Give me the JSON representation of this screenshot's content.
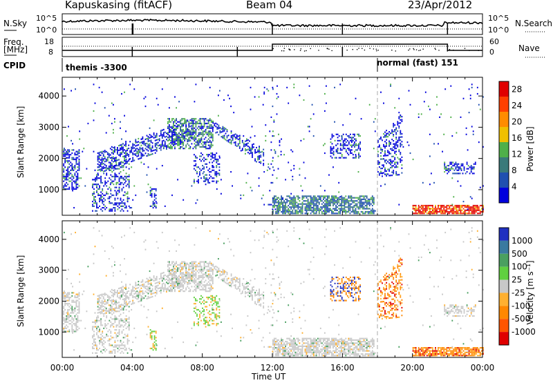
{
  "header": {
    "station": "Kapuskasing (fitACF)",
    "beam": "Beam 04",
    "date": "23/Apr/2012"
  },
  "top_panels": {
    "nsky_label": "N.Sky",
    "nsearch_label": "N.Search",
    "freq_label_line1": "Freq.",
    "freq_label_line2": "[MHz]",
    "nave_label": "Nave",
    "cpid_label": "CPID",
    "nsky_ticks_left": [
      "10^5",
      "10^0"
    ],
    "nsky_ticks_right": [
      "10^5",
      "10^0"
    ],
    "freq_ticks_left": [
      "18",
      "8"
    ],
    "nave_ticks_right": [
      "60",
      "0"
    ],
    "cpid_modes": [
      {
        "name": "themis -3300",
        "start_h": 0,
        "end_h": 18
      },
      {
        "name": "normal (fast) 151",
        "start_h": 18,
        "end_h": 24
      }
    ]
  },
  "chart_data": [
    {
      "type": "heatmap",
      "title": "",
      "panel": "power",
      "xlabel": "",
      "ylabel": "Slant Range [km]",
      "xlim": [
        0,
        24
      ],
      "ylim": [
        180,
        4600
      ],
      "yticks": [
        "1000",
        "2000",
        "3000",
        "4000"
      ],
      "colorbar_label": "Power [dB]",
      "colorbar_ticks": [
        "4",
        "8",
        "12",
        "16",
        "20",
        "24",
        "28"
      ],
      "colorbar_range": [
        0,
        30
      ],
      "colors": [
        "#0000dd",
        "#2050b0",
        "#3a7a7a",
        "#4fb04a",
        "#f0c000",
        "#ff8c00",
        "#ff4000",
        "#e00000"
      ]
    },
    {
      "type": "heatmap",
      "title": "",
      "panel": "velocity",
      "xlabel": "Time UT",
      "ylabel": "Slant Range [km]",
      "xlim": [
        0,
        24
      ],
      "ylim": [
        180,
        4600
      ],
      "yticks": [
        "1000",
        "2000",
        "3000",
        "4000"
      ],
      "xticks": [
        "00:00",
        "04:00",
        "08:00",
        "12:00",
        "16:00",
        "20:00",
        "00:00"
      ],
      "colorbar_label": "Velocity [m s⁻¹]",
      "colorbar_ticks": [
        "1000",
        "500",
        "100",
        "25",
        "-25",
        "-100",
        "-500",
        "-1000"
      ],
      "colors": [
        "#2030c0",
        "#3a7aa0",
        "#4aa060",
        "#60d040",
        "#c8c8c8",
        "#ffb030",
        "#ff8800",
        "#ff5500",
        "#e00000"
      ]
    }
  ]
}
